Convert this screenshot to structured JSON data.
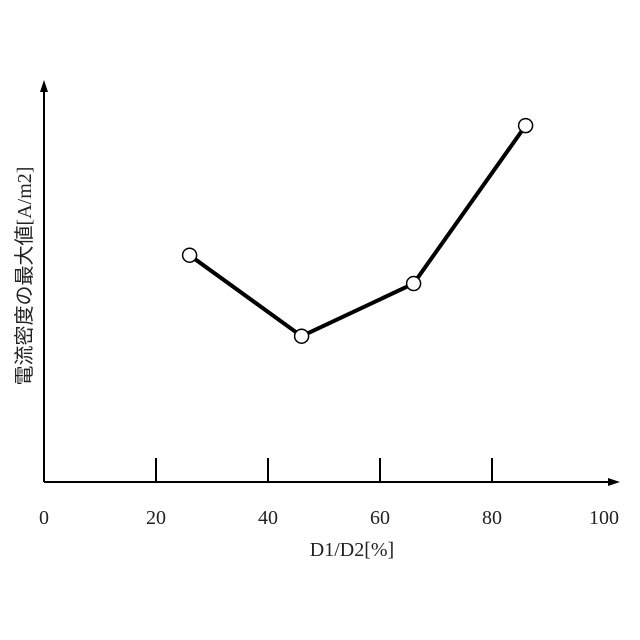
{
  "chart_data": {
    "type": "line",
    "title": "",
    "xlabel": "D1/D2[%]",
    "ylabel": "電流密度の最大値[A/m2]",
    "xlim": [
      0,
      100
    ],
    "x_ticks": [
      0,
      20,
      40,
      60,
      80,
      100
    ],
    "y_ticks": [],
    "grid": false,
    "legend": "none",
    "series": [
      {
        "x": [
          26,
          46,
          66,
          86
        ],
        "y": [
          0.56,
          0.36,
          0.49,
          0.88
        ]
      }
    ],
    "colors": {
      "line": "#000000",
      "marker_fill": "#ffffff",
      "axis": "#000000"
    }
  }
}
